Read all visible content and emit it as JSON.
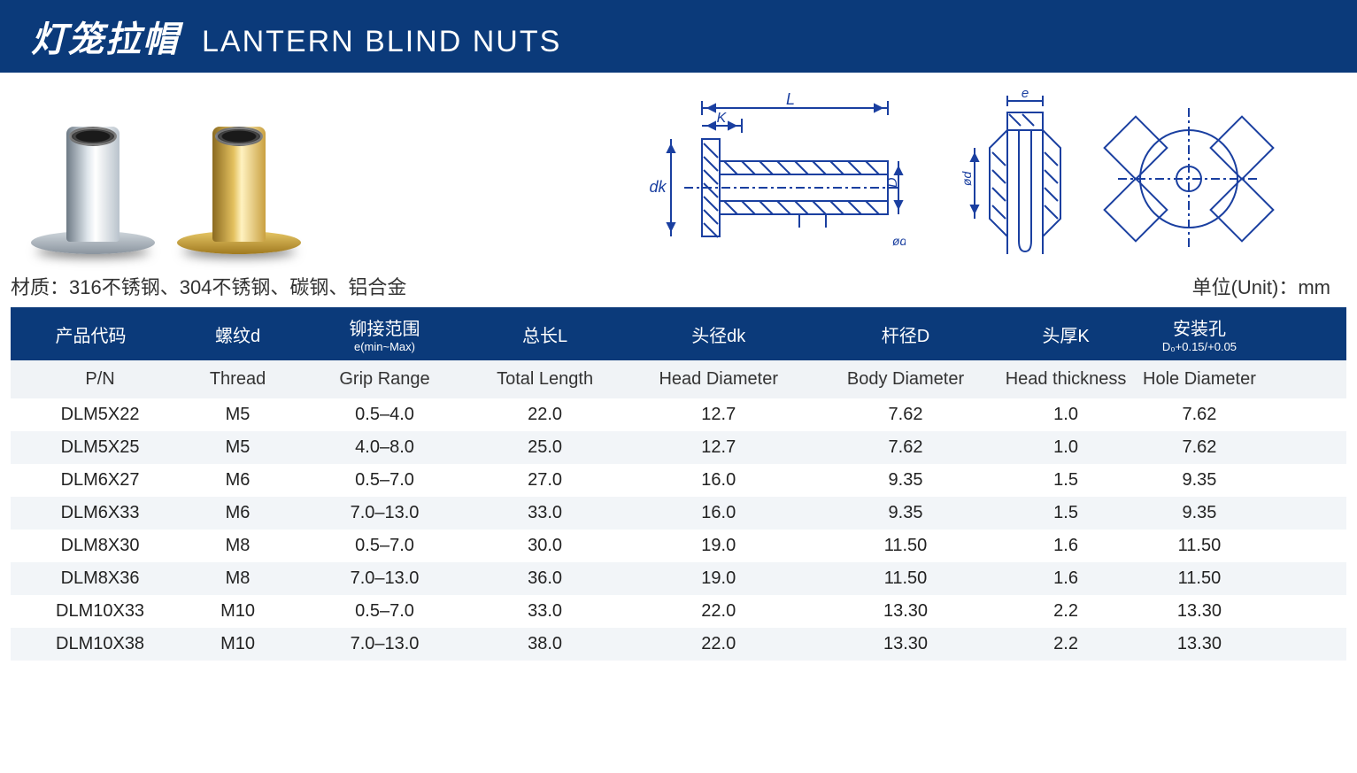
{
  "header": {
    "title_cn": "灯笼拉帽",
    "title_en": "LANTERN BLIND NUTS",
    "bar_bg": "#0b3a7a",
    "bar_fg": "#ffffff"
  },
  "meta": {
    "material_label": "材质：316不锈钢、304不锈钢、碳钢、铝合金",
    "unit_label": "单位(Unit)：mm"
  },
  "diagram": {
    "side": {
      "label_L": "L",
      "label_K": "K",
      "label_dk": "dk",
      "label_D": "D",
      "label_d": "ød"
    },
    "front": {
      "label_e": "e",
      "label_d20": "ød"
    },
    "stroke_color": "#1a3fa0",
    "stroke_width": 2
  },
  "table": {
    "header_bg": "#0b3a7a",
    "header_fg": "#ffffff",
    "row_alt_bg": "#f2f5f8",
    "columns_cn": [
      {
        "main": "产品代码",
        "sub": ""
      },
      {
        "main": "螺纹d",
        "sub": ""
      },
      {
        "main": "铆接范围",
        "sub": "e(min~Max)"
      },
      {
        "main": "总长L",
        "sub": ""
      },
      {
        "main": "头径dk",
        "sub": ""
      },
      {
        "main": "杆径D",
        "sub": ""
      },
      {
        "main": "头厚K",
        "sub": ""
      },
      {
        "main": "安装孔",
        "sub": "D₀+0.15/+0.05"
      }
    ],
    "columns_en": [
      "P/N",
      "Thread",
      "Grip Range",
      "Total Length",
      "Head Diameter",
      "Body Diameter",
      "Head thickness",
      "Hole Diameter"
    ],
    "rows": [
      [
        "DLM5X22",
        "M5",
        "0.5–4.0",
        "22.0",
        "12.7",
        "7.62",
        "1.0",
        "7.62"
      ],
      [
        "DLM5X25",
        "M5",
        "4.0–8.0",
        "25.0",
        "12.7",
        "7.62",
        "1.0",
        "7.62"
      ],
      [
        "DLM6X27",
        "M6",
        "0.5–7.0",
        "27.0",
        "16.0",
        "9.35",
        "1.5",
        "9.35"
      ],
      [
        "DLM6X33",
        "M6",
        "7.0–13.0",
        "33.0",
        "16.0",
        "9.35",
        "1.5",
        "9.35"
      ],
      [
        "DLM8X30",
        "M8",
        "0.5–7.0",
        "30.0",
        "19.0",
        "11.50",
        "1.6",
        "11.50"
      ],
      [
        "DLM8X36",
        "M8",
        "7.0–13.0",
        "36.0",
        "19.0",
        "11.50",
        "1.6",
        "11.50"
      ],
      [
        "DLM10X33",
        "M10",
        "0.5–7.0",
        "33.0",
        "22.0",
        "13.30",
        "2.2",
        "13.30"
      ],
      [
        "DLM10X38",
        "M10",
        "7.0–13.0",
        "38.0",
        "22.0",
        "13.30",
        "2.2",
        "13.30"
      ]
    ]
  }
}
